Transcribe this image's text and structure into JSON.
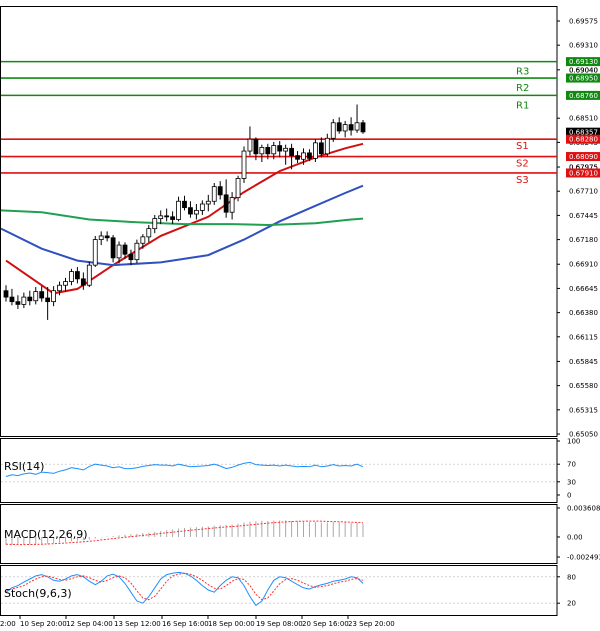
{
  "chart_data": {
    "type": "candlestick",
    "symbol": "",
    "price_axis": {
      "min": 0.6505,
      "max": 0.69575,
      "ticks": [
        "0.69575",
        "0.69310",
        "0.69040",
        "0.68510",
        "0.68245",
        "0.67975",
        "0.67710",
        "0.67445",
        "0.67180",
        "0.66910",
        "0.66645",
        "0.66380",
        "0.66115",
        "0.65845",
        "0.65580",
        "0.65315",
        "0.65050"
      ]
    },
    "time_labels": [
      "2:00",
      "10 Sep 20:00",
      "12 Sep 04:00",
      "13 Sep 12:00",
      "16 Sep 16:00",
      "18 Sep 00:00",
      "19 Sep 08:00",
      "20 Sep 16:00",
      "23 Sep 20:00"
    ],
    "candles": [
      {
        "o": 0.6662,
        "h": 0.6668,
        "l": 0.665,
        "c": 0.6655
      },
      {
        "o": 0.6655,
        "h": 0.6664,
        "l": 0.6646,
        "c": 0.665
      },
      {
        "o": 0.665,
        "h": 0.6657,
        "l": 0.6642,
        "c": 0.6647
      },
      {
        "o": 0.6647,
        "h": 0.666,
        "l": 0.6643,
        "c": 0.6655
      },
      {
        "o": 0.6655,
        "h": 0.6662,
        "l": 0.6646,
        "c": 0.6651
      },
      {
        "o": 0.6651,
        "h": 0.6666,
        "l": 0.6647,
        "c": 0.6661
      },
      {
        "o": 0.6661,
        "h": 0.6667,
        "l": 0.665,
        "c": 0.6654
      },
      {
        "o": 0.6654,
        "h": 0.6666,
        "l": 0.663,
        "c": 0.665
      },
      {
        "o": 0.665,
        "h": 0.6667,
        "l": 0.6645,
        "c": 0.6662
      },
      {
        "o": 0.6662,
        "h": 0.6672,
        "l": 0.6657,
        "c": 0.6668
      },
      {
        "o": 0.6668,
        "h": 0.6676,
        "l": 0.6661,
        "c": 0.6672
      },
      {
        "o": 0.6672,
        "h": 0.6686,
        "l": 0.6668,
        "c": 0.6683
      },
      {
        "o": 0.6683,
        "h": 0.6688,
        "l": 0.667,
        "c": 0.6675
      },
      {
        "o": 0.6675,
        "h": 0.6682,
        "l": 0.6663,
        "c": 0.6668
      },
      {
        "o": 0.6668,
        "h": 0.6694,
        "l": 0.6666,
        "c": 0.669
      },
      {
        "o": 0.669,
        "h": 0.6722,
        "l": 0.6688,
        "c": 0.6718
      },
      {
        "o": 0.6718,
        "h": 0.6727,
        "l": 0.6712,
        "c": 0.6722
      },
      {
        "o": 0.6722,
        "h": 0.6727,
        "l": 0.6716,
        "c": 0.672
      },
      {
        "o": 0.672,
        "h": 0.6723,
        "l": 0.6693,
        "c": 0.6698
      },
      {
        "o": 0.6698,
        "h": 0.6716,
        "l": 0.6692,
        "c": 0.6712
      },
      {
        "o": 0.6712,
        "h": 0.6715,
        "l": 0.6697,
        "c": 0.6702
      },
      {
        "o": 0.6702,
        "h": 0.6707,
        "l": 0.669,
        "c": 0.6696
      },
      {
        "o": 0.6696,
        "h": 0.6718,
        "l": 0.6692,
        "c": 0.6714
      },
      {
        "o": 0.6714,
        "h": 0.6724,
        "l": 0.6708,
        "c": 0.6721
      },
      {
        "o": 0.6721,
        "h": 0.6734,
        "l": 0.6715,
        "c": 0.673
      },
      {
        "o": 0.673,
        "h": 0.6745,
        "l": 0.6725,
        "c": 0.6741
      },
      {
        "o": 0.6741,
        "h": 0.675,
        "l": 0.6735,
        "c": 0.6744
      },
      {
        "o": 0.6744,
        "h": 0.6752,
        "l": 0.6738,
        "c": 0.6743
      },
      {
        "o": 0.6743,
        "h": 0.6749,
        "l": 0.6735,
        "c": 0.674
      },
      {
        "o": 0.674,
        "h": 0.6765,
        "l": 0.6738,
        "c": 0.676
      },
      {
        "o": 0.676,
        "h": 0.6766,
        "l": 0.675,
        "c": 0.6753
      },
      {
        "o": 0.6753,
        "h": 0.676,
        "l": 0.6742,
        "c": 0.6746
      },
      {
        "o": 0.6746,
        "h": 0.6757,
        "l": 0.674,
        "c": 0.675
      },
      {
        "o": 0.675,
        "h": 0.6761,
        "l": 0.6745,
        "c": 0.6757
      },
      {
        "o": 0.6757,
        "h": 0.6767,
        "l": 0.6749,
        "c": 0.676
      },
      {
        "o": 0.676,
        "h": 0.678,
        "l": 0.6756,
        "c": 0.6776
      },
      {
        "o": 0.6776,
        "h": 0.6782,
        "l": 0.6762,
        "c": 0.6767
      },
      {
        "o": 0.6767,
        "h": 0.6784,
        "l": 0.6742,
        "c": 0.6748
      },
      {
        "o": 0.6748,
        "h": 0.677,
        "l": 0.674,
        "c": 0.6764
      },
      {
        "o": 0.6764,
        "h": 0.6788,
        "l": 0.676,
        "c": 0.6785
      },
      {
        "o": 0.6785,
        "h": 0.682,
        "l": 0.678,
        "c": 0.6815
      },
      {
        "o": 0.6815,
        "h": 0.6842,
        "l": 0.681,
        "c": 0.6828
      },
      {
        "o": 0.6828,
        "h": 0.683,
        "l": 0.6805,
        "c": 0.6812
      },
      {
        "o": 0.6812,
        "h": 0.6822,
        "l": 0.6803,
        "c": 0.6819
      },
      {
        "o": 0.6819,
        "h": 0.6823,
        "l": 0.6806,
        "c": 0.6812
      },
      {
        "o": 0.6812,
        "h": 0.6825,
        "l": 0.6806,
        "c": 0.6821
      },
      {
        "o": 0.6821,
        "h": 0.6826,
        "l": 0.6808,
        "c": 0.6815
      },
      {
        "o": 0.6815,
        "h": 0.6822,
        "l": 0.68,
        "c": 0.6818
      },
      {
        "o": 0.6818,
        "h": 0.6823,
        "l": 0.6795,
        "c": 0.681
      },
      {
        "o": 0.681,
        "h": 0.6815,
        "l": 0.6802,
        "c": 0.6806
      },
      {
        "o": 0.6806,
        "h": 0.6818,
        "l": 0.68,
        "c": 0.6813
      },
      {
        "o": 0.6813,
        "h": 0.6817,
        "l": 0.6804,
        "c": 0.6807
      },
      {
        "o": 0.6807,
        "h": 0.6828,
        "l": 0.6803,
        "c": 0.6824
      },
      {
        "o": 0.6824,
        "h": 0.683,
        "l": 0.6808,
        "c": 0.6812
      },
      {
        "o": 0.6812,
        "h": 0.6834,
        "l": 0.6809,
        "c": 0.6829
      },
      {
        "o": 0.6829,
        "h": 0.685,
        "l": 0.6825,
        "c": 0.6846
      },
      {
        "o": 0.6846,
        "h": 0.6852,
        "l": 0.6834,
        "c": 0.6837
      },
      {
        "o": 0.6837,
        "h": 0.6848,
        "l": 0.683,
        "c": 0.6844
      },
      {
        "o": 0.6844,
        "h": 0.6852,
        "l": 0.6832,
        "c": 0.6838
      },
      {
        "o": 0.6838,
        "h": 0.6866,
        "l": 0.6835,
        "c": 0.6846
      },
      {
        "o": 0.6846,
        "h": 0.6849,
        "l": 0.6834,
        "c": 0.6836
      }
    ],
    "moving_averages": [
      {
        "color": "#d01010",
        "x": [
          0,
          8,
          12,
          18,
          26,
          34,
          40,
          46,
          52,
          57,
          60
        ],
        "y": [
          0.6695,
          0.6659,
          0.6664,
          0.669,
          0.6722,
          0.6743,
          0.677,
          0.6793,
          0.6808,
          0.6818,
          0.6823
        ]
      },
      {
        "color": "#3050c0",
        "x": [
          -2,
          6,
          12,
          18,
          26,
          34,
          40,
          46,
          52,
          57,
          60
        ],
        "y": [
          0.673,
          0.6708,
          0.6695,
          0.669,
          0.6693,
          0.6701,
          0.6718,
          0.6738,
          0.6755,
          0.6769,
          0.6777
        ]
      },
      {
        "color": "#20a050",
        "x": [
          -2,
          6,
          14,
          22,
          30,
          38,
          44,
          52,
          58,
          60
        ],
        "y": [
          0.675,
          0.6748,
          0.674,
          0.6737,
          0.6735,
          0.6735,
          0.6734,
          0.6736,
          0.674,
          0.6741
        ]
      }
    ],
    "levels": [
      {
        "name": "R3",
        "value": "0.69130",
        "color": "#118811"
      },
      {
        "name": "R2",
        "value": "0.68950",
        "color": "#118811"
      },
      {
        "name": "R1",
        "value": "0.68760",
        "color": "#118811"
      },
      {
        "name": "S1",
        "value": "0.68280",
        "color": "#dd1111"
      },
      {
        "name": "S2",
        "value": "0.68090",
        "color": "#dd1111"
      },
      {
        "name": "S3",
        "value": "0.67910",
        "color": "#dd1111"
      }
    ],
    "extra_axis_labels": [
      {
        "value": "0.69040",
        "y": 0.6904
      },
      {
        "value": "0.68357",
        "y": 0.68357,
        "current": true
      },
      {
        "value": "0.67975",
        "y": 0.67975
      }
    ],
    "rsi": {
      "label": "RSI(14)",
      "ticks": [
        "100",
        "70",
        "30",
        "0"
      ],
      "values": [
        42,
        46,
        44,
        48,
        50,
        47,
        52,
        51,
        49,
        54,
        57,
        62,
        60,
        57,
        65,
        70,
        68,
        66,
        62,
        64,
        60,
        60,
        62,
        65,
        67,
        69,
        68,
        68,
        66,
        70,
        67,
        64,
        65,
        66,
        67,
        70,
        66,
        60,
        63,
        68,
        72,
        74,
        69,
        68,
        67,
        68,
        66,
        68,
        66,
        64,
        65,
        64,
        68,
        64,
        66,
        69,
        66,
        67,
        66,
        70,
        64
      ]
    },
    "macd": {
      "label": "MACD(12,26,9)",
      "ticks": [
        "0.003608",
        "0.00",
        "-0.002493"
      ],
      "histogram": [
        -0.00095,
        -0.00098,
        -0.001,
        -0.00095,
        -0.00093,
        -0.00088,
        -0.00085,
        -0.00083,
        -0.00078,
        -0.00072,
        -0.00065,
        -0.00055,
        -0.00048,
        -0.00042,
        -0.00032,
        -0.00018,
        -5e-05,
        5e-05,
        0.0001,
        0.0002,
        0.00028,
        0.00034,
        0.0004,
        0.00048,
        0.00055,
        0.00065,
        0.00075,
        0.00085,
        0.00095,
        0.00105,
        0.00112,
        0.00118,
        0.00122,
        0.00128,
        0.00132,
        0.0014,
        0.00148,
        0.0015,
        0.00155,
        0.00165,
        0.0018,
        0.0019,
        0.00195,
        0.002,
        0.002,
        0.00205,
        0.00205,
        0.00205,
        0.002,
        0.00195,
        0.0019,
        0.00185,
        0.00185,
        0.0018,
        0.0018,
        0.00185,
        0.00185,
        0.0018,
        0.00175,
        0.00172,
        0.0017
      ],
      "signal": [
        -0.0009,
        -0.00093,
        -0.00095,
        -0.00095,
        -0.00094,
        -0.00092,
        -0.0009,
        -0.00087,
        -0.00084,
        -0.0008,
        -0.00076,
        -0.0007,
        -0.00065,
        -0.0006,
        -0.00054,
        -0.00046,
        -0.00037,
        -0.00029,
        -0.0002,
        -0.00012,
        -4e-05,
        4e-05,
        0.00012,
        0.0002,
        0.00028,
        0.00036,
        0.00044,
        0.00052,
        0.0006,
        0.00068,
        0.00076,
        0.00084,
        0.0009,
        0.00098,
        0.00105,
        0.00112,
        0.00118,
        0.00125,
        0.0013,
        0.00136,
        0.00143,
        0.0015,
        0.00157,
        0.00165,
        0.00172,
        0.00178,
        0.00183,
        0.00188,
        0.00192,
        0.00195,
        0.00197,
        0.00198,
        0.00198,
        0.00196,
        0.00194,
        0.00192,
        0.0019,
        0.00187,
        0.00184,
        0.00181,
        0.00178
      ]
    },
    "stoch": {
      "label": "Stoch(9,6,3)",
      "ticks": [
        "80",
        "20"
      ],
      "k": [
        45,
        55,
        60,
        68,
        75,
        82,
        85,
        80,
        72,
        70,
        75,
        82,
        85,
        80,
        70,
        62,
        70,
        82,
        86,
        80,
        65,
        45,
        25,
        20,
        35,
        55,
        75,
        85,
        88,
        90,
        88,
        82,
        72,
        60,
        50,
        45,
        60,
        72,
        80,
        78,
        60,
        35,
        15,
        25,
        50,
        72,
        80,
        78,
        70,
        62,
        55,
        52,
        58,
        62,
        65,
        70,
        72,
        75,
        80,
        78,
        65
      ],
      "d": [
        50,
        52,
        56,
        60,
        68,
        75,
        80,
        82,
        78,
        74,
        72,
        76,
        80,
        82,
        78,
        72,
        68,
        72,
        78,
        82,
        78,
        66,
        48,
        32,
        28,
        36,
        52,
        70,
        82,
        86,
        88,
        86,
        80,
        72,
        62,
        54,
        52,
        60,
        70,
        76,
        74,
        60,
        40,
        28,
        32,
        48,
        64,
        74,
        76,
        72,
        66,
        60,
        56,
        58,
        60,
        64,
        68,
        70,
        74,
        76,
        72
      ]
    }
  }
}
